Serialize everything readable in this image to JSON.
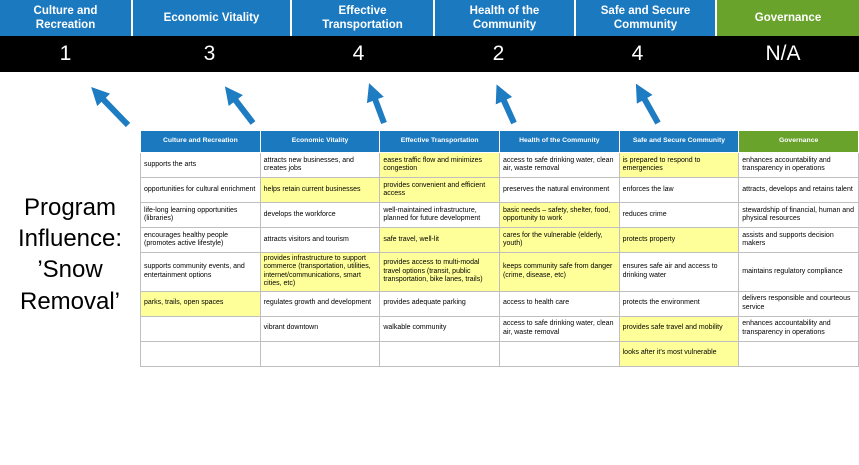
{
  "colors": {
    "header_blue": "#1B79C0",
    "header_green": "#69A32B",
    "score_bar_black": "#000000",
    "highlight_yellow": "#FFFF99",
    "arrow_blue": "#1E7CC2"
  },
  "scoreboard": {
    "columns": [
      {
        "label": "Culture and Recreation",
        "score": "1"
      },
      {
        "label": "Economic Vitality",
        "score": "3"
      },
      {
        "label": "Effective Transportation",
        "score": "4"
      },
      {
        "label": "Health of the Community",
        "score": "2"
      },
      {
        "label": "Safe and Secure Community",
        "score": "4"
      },
      {
        "label": "Governance",
        "score": "N/A"
      }
    ]
  },
  "program_label": "Program Influence: ’Snow Removal’",
  "table": {
    "headers": [
      {
        "label": "Culture and Recreation",
        "color": "blue"
      },
      {
        "label": "Economic Vitality",
        "color": "blue"
      },
      {
        "label": "Effective Transportation",
        "color": "blue"
      },
      {
        "label": "Health of the Community",
        "color": "blue"
      },
      {
        "label": "Safe and Secure Community",
        "color": "blue"
      },
      {
        "label": "Governance",
        "color": "green"
      }
    ],
    "rows": [
      [
        {
          "text": "supports the arts",
          "hl": false
        },
        {
          "text": "attracts new businesses, and creates jobs",
          "hl": false
        },
        {
          "text": "eases traffic flow and minimizes congestion",
          "hl": true
        },
        {
          "text": "access to safe drinking water, clean air, waste removal",
          "hl": false
        },
        {
          "text": "is prepared to respond to emergencies",
          "hl": true
        },
        {
          "text": "enhances accountability and transparency in operations",
          "hl": false
        }
      ],
      [
        {
          "text": "opportunities for cultural enrichment",
          "hl": false
        },
        {
          "text": "helps retain current businesses",
          "hl": true
        },
        {
          "text": "provides convenient and efficient access",
          "hl": true
        },
        {
          "text": "preserves the natural environment",
          "hl": false
        },
        {
          "text": "enforces the law",
          "hl": false
        },
        {
          "text": "attracts, develops and retains talent",
          "hl": false
        }
      ],
      [
        {
          "text": "life-long learning opportunities (libraries)",
          "hl": false
        },
        {
          "text": "develops the workforce",
          "hl": false
        },
        {
          "text": "well-maintained infrastructure, planned for future development",
          "hl": false
        },
        {
          "text": "basic needs – safety, shelter, food, opportunity to work",
          "hl": true
        },
        {
          "text": "reduces crime",
          "hl": false
        },
        {
          "text": "stewardship of financial, human and physical resources",
          "hl": false
        }
      ],
      [
        {
          "text": "encourages healthy people (promotes active lifestyle)",
          "hl": false
        },
        {
          "text": "attracts visitors and tourism",
          "hl": false
        },
        {
          "text": "safe travel, well-lit",
          "hl": true
        },
        {
          "text": "cares for the vulnerable (elderly, youth)",
          "hl": true
        },
        {
          "text": "protects property",
          "hl": true
        },
        {
          "text": "assists and supports decision makers",
          "hl": false
        }
      ],
      [
        {
          "text": "supports community events, and entertainment options",
          "hl": false
        },
        {
          "text": "provides infrastructure to support commerce (transportation, utilities, internet/communications, smart cities, etc)",
          "hl": true
        },
        {
          "text": "provides access to multi-modal travel options (transit, public transportation, bike lanes, trails)",
          "hl": true
        },
        {
          "text": "keeps community safe from danger (crime, disease, etc)",
          "hl": true
        },
        {
          "text": "ensures safe air and access to drinking water",
          "hl": false
        },
        {
          "text": "maintains regulatory compliance",
          "hl": false
        }
      ],
      [
        {
          "text": "parks, trails, open spaces",
          "hl": true
        },
        {
          "text": "regulates growth and development",
          "hl": false
        },
        {
          "text": "provides adequate parking",
          "hl": false
        },
        {
          "text": "access to health care",
          "hl": false
        },
        {
          "text": "protects the environment",
          "hl": false
        },
        {
          "text": "delivers responsible and courteous service",
          "hl": false
        }
      ],
      [
        {
          "text": "",
          "hl": false
        },
        {
          "text": "vibrant downtown",
          "hl": false
        },
        {
          "text": "walkable community",
          "hl": false
        },
        {
          "text": "access to safe drinking water, clean air, waste removal",
          "hl": false
        },
        {
          "text": "provides safe travel and mobility",
          "hl": true
        },
        {
          "text": "enhances accountability and transparency in operations",
          "hl": false
        }
      ],
      [
        {
          "text": "",
          "hl": false
        },
        {
          "text": "",
          "hl": false
        },
        {
          "text": "",
          "hl": false
        },
        {
          "text": "",
          "hl": false
        },
        {
          "text": "looks after it's most vulnerable",
          "hl": true
        },
        {
          "text": "",
          "hl": false
        }
      ]
    ]
  }
}
